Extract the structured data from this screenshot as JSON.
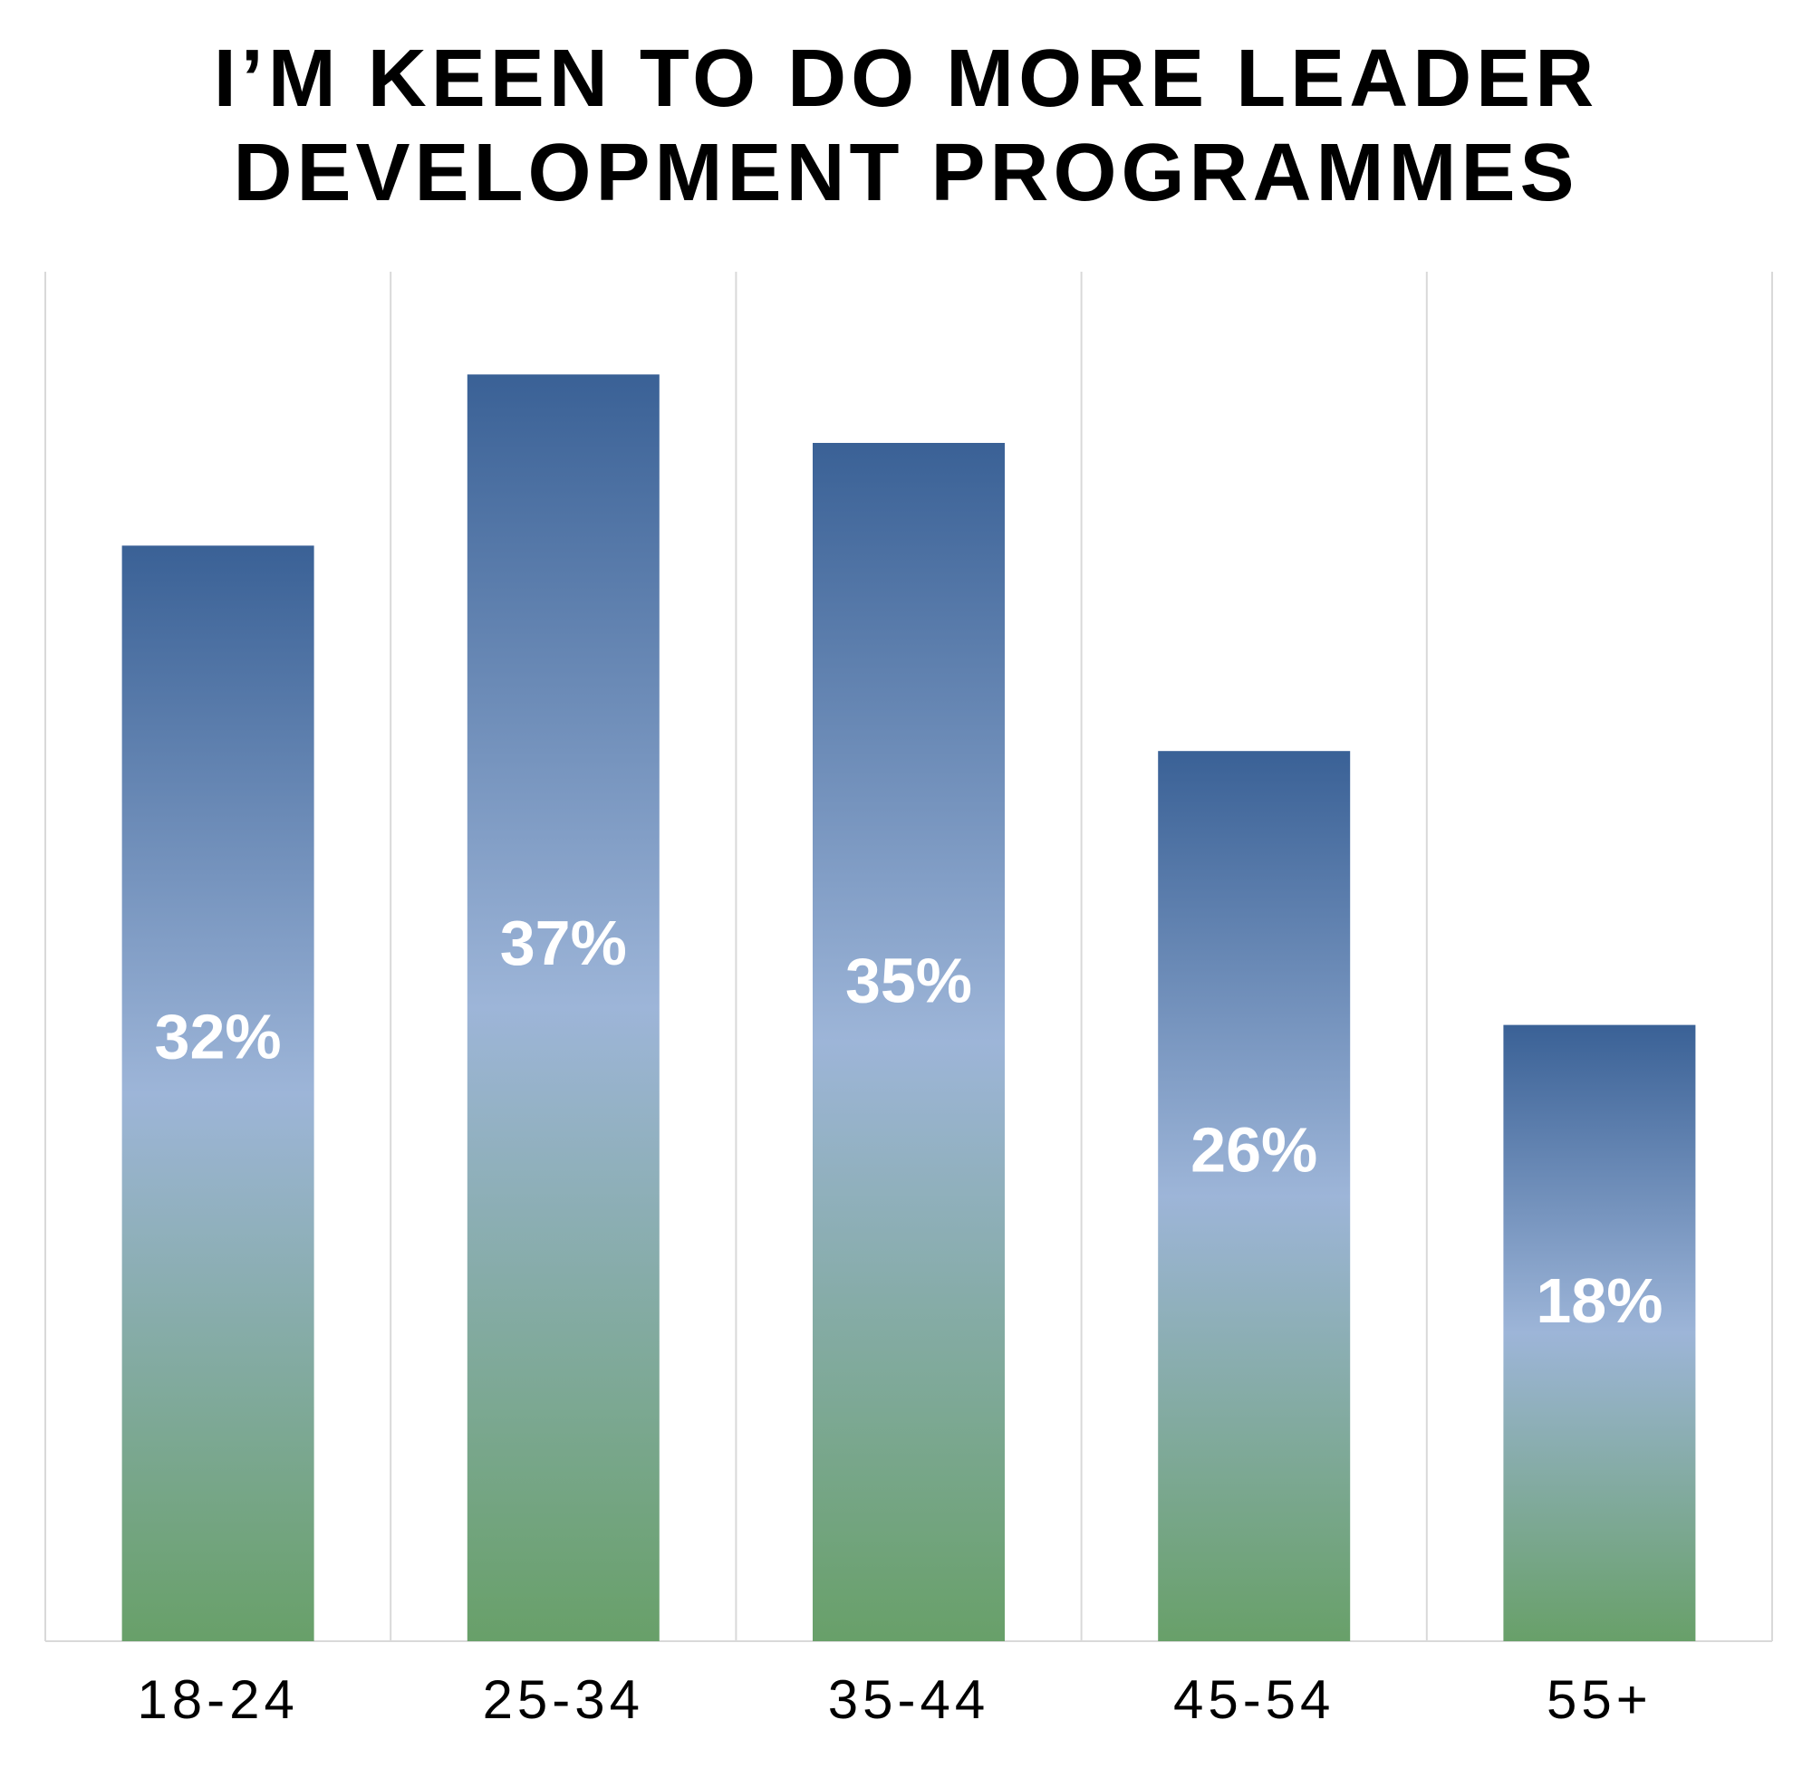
{
  "chart_data": {
    "type": "bar",
    "title_lines": [
      "I’M KEEN TO DO MORE LEADER",
      "DEVELOPMENT PROGRAMMES"
    ],
    "categories": [
      "18-24",
      "25-34",
      "35-44",
      "45-54",
      "55+"
    ],
    "values": [
      32,
      37,
      35,
      26,
      18
    ],
    "data_labels": [
      "32%",
      "37%",
      "35%",
      "26%",
      "18%"
    ],
    "value_unit": "%",
    "ylim": [
      0,
      40
    ],
    "xlabel": "",
    "ylabel": "",
    "grid": "vertical category separators",
    "legend": "none",
    "y_axis_labels": "none"
  },
  "colors": {
    "bar_gradient_top": "#3a6196",
    "bar_gradient_middle": "#9db5d8",
    "bar_gradient_bottom": "#68a069",
    "data_label": "#ffffff",
    "axis_label": "#000000",
    "gridline": "#d9d9d9",
    "title": "#000000"
  }
}
